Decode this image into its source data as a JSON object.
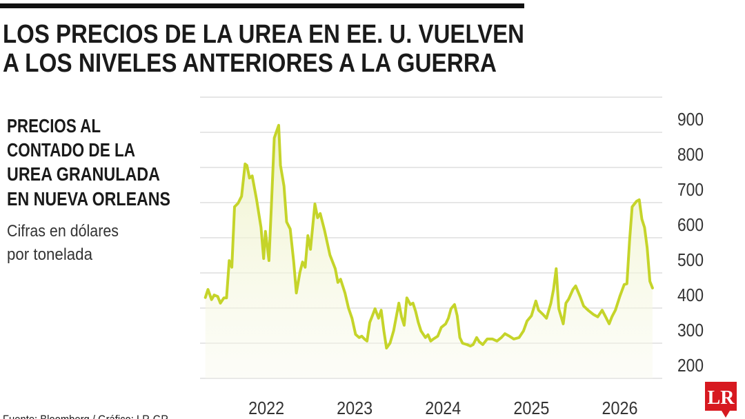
{
  "chart_data": {
    "type": "line",
    "title": [
      "LOS PRECIOS DE LA UREA EN EE. U. VUELVEN",
      "A LOS NIVELES ANTERIORES A LA GUERRA"
    ],
    "subtitle": [
      "PRECIOS AL",
      "CONTADO DE LA",
      "UREA GRANULADA",
      "EN NUEVA ORLEANS"
    ],
    "y_label": [
      "Cifras en dólares",
      "por tonelada"
    ],
    "source": "Fuente: Bloomberg / Gráfico: LR-GR",
    "logo": "LR",
    "xlim": [
      2021.25,
      2026.48
    ],
    "xticks": [
      {
        "value": 2022,
        "label": "2022"
      },
      {
        "value": 2023,
        "label": "2023"
      },
      {
        "value": 2024,
        "label": "2024"
      },
      {
        "value": 2025,
        "label": "2025"
      },
      {
        "value": 2026,
        "label": "2026"
      }
    ],
    "ylim": [
      200,
      1000
    ],
    "yticks": [
      200,
      300,
      400,
      500,
      600,
      700,
      800,
      900
    ],
    "grid": true,
    "series": [
      {
        "name": "Urea granulada Nueva Orleans",
        "color": "#c5d42a",
        "x": [
          2021.31,
          2021.34,
          2021.38,
          2021.41,
          2021.45,
          2021.48,
          2021.52,
          2021.55,
          2021.58,
          2021.61,
          2021.64,
          2021.68,
          2021.72,
          2021.76,
          2021.78,
          2021.81,
          2021.84,
          2021.89,
          2021.94,
          2021.97,
          2021.99,
          2022.03,
          2022.06,
          2022.09,
          2022.14,
          2022.16,
          2022.2,
          2022.23,
          2022.27,
          2022.31,
          2022.34,
          2022.38,
          2022.41,
          2022.44,
          2022.47,
          2022.5,
          2022.55,
          2022.58,
          2022.61,
          2022.66,
          2022.72,
          2022.78,
          2022.81,
          2022.84,
          2022.89,
          2022.93,
          2022.97,
          2023.01,
          2023.05,
          2023.08,
          2023.11,
          2023.14,
          2023.17,
          2023.2,
          2023.23,
          2023.27,
          2023.3,
          2023.33,
          2023.36,
          2023.4,
          2023.44,
          2023.5,
          2023.53,
          2023.56,
          2023.59,
          2023.63,
          2023.66,
          2023.69,
          2023.72,
          2023.75,
          2023.8,
          2023.83,
          2023.86,
          2023.89,
          2023.94,
          2023.98,
          2024.03,
          2024.06,
          2024.09,
          2024.13,
          2024.16,
          2024.19,
          2024.22,
          2024.27,
          2024.31,
          2024.34,
          2024.38,
          2024.41,
          2024.45,
          2024.5,
          2024.56,
          2024.61,
          2024.66,
          2024.7,
          2024.75,
          2024.8,
          2024.86,
          2024.91,
          2024.95,
          2025.0,
          2025.05,
          2025.08,
          2025.13,
          2025.17,
          2025.22,
          2025.25,
          2025.28,
          2025.31,
          2025.36,
          2025.39,
          2025.42,
          2025.47,
          2025.5,
          2025.55,
          2025.59,
          2025.64,
          2025.7,
          2025.75,
          2025.8,
          2025.84,
          2025.88,
          2025.91,
          2025.95,
          2026.0,
          2026.05,
          2026.08,
          2026.11,
          2026.14,
          2026.19,
          2026.22,
          2026.25,
          2026.28,
          2026.31,
          2026.34,
          2026.37
        ],
        "values": [
          430,
          453,
          424,
          437,
          433,
          414,
          429,
          429,
          535,
          516,
          688,
          698,
          718,
          810,
          806,
          770,
          776,
          708,
          629,
          541,
          618,
          535,
          708,
          884,
          920,
          806,
          747,
          645,
          625,
          531,
          443,
          502,
          531,
          516,
          606,
          567,
          696,
          657,
          669,
          620,
          551,
          512,
          473,
          482,
          443,
          400,
          371,
          325,
          316,
          320,
          312,
          306,
          359,
          378,
          398,
          371,
          394,
          335,
          286,
          300,
          335,
          414,
          375,
          351,
          429,
          410,
          414,
          390,
          359,
          335,
          316,
          324,
          306,
          312,
          320,
          345,
          355,
          371,
          398,
          410,
          378,
          316,
          300,
          296,
          292,
          296,
          316,
          304,
          296,
          312,
          312,
          306,
          316,
          327,
          320,
          312,
          316,
          335,
          363,
          378,
          420,
          394,
          382,
          371,
          414,
          453,
          512,
          398,
          355,
          414,
          425,
          453,
          463,
          433,
          406,
          394,
          382,
          375,
          394,
          375,
          355,
          375,
          394,
          433,
          467,
          469,
          590,
          688,
          704,
          708,
          653,
          629,
          571,
          476,
          457
        ]
      }
    ]
  }
}
